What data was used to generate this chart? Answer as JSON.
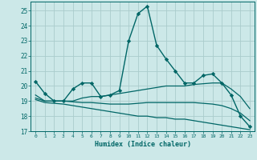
{
  "title": "",
  "xlabel": "Humidex (Indice chaleur)",
  "ylabel": "",
  "bg_color": "#cce8e8",
  "grid_color": "#aacccc",
  "line_color": "#006666",
  "xlim": [
    -0.5,
    23.5
  ],
  "ylim": [
    17,
    25.6
  ],
  "yticks": [
    17,
    18,
    19,
    20,
    21,
    22,
    23,
    24,
    25
  ],
  "xticks": [
    0,
    1,
    2,
    3,
    4,
    5,
    6,
    7,
    8,
    9,
    10,
    11,
    12,
    13,
    14,
    15,
    16,
    17,
    18,
    19,
    20,
    21,
    22,
    23
  ],
  "lines": [
    {
      "x": [
        0,
        1,
        2,
        3,
        4,
        5,
        6,
        7,
        8,
        9,
        10,
        11,
        12,
        13,
        14,
        15,
        16,
        17,
        18,
        19,
        20,
        21,
        22,
        23
      ],
      "y": [
        20.3,
        19.5,
        19.0,
        19.0,
        19.8,
        20.2,
        20.2,
        19.3,
        19.4,
        19.7,
        23.0,
        24.8,
        25.3,
        22.7,
        21.8,
        21.0,
        20.2,
        20.2,
        20.7,
        20.8,
        20.2,
        19.4,
        18.0,
        17.3
      ],
      "marker": "D",
      "markersize": 2.2,
      "linewidth": 1.0
    },
    {
      "x": [
        0,
        1,
        2,
        3,
        4,
        5,
        6,
        7,
        8,
        9,
        10,
        11,
        12,
        13,
        14,
        15,
        16,
        17,
        18,
        19,
        20,
        21,
        22,
        23
      ],
      "y": [
        19.4,
        19.0,
        19.0,
        19.0,
        19.0,
        19.2,
        19.3,
        19.3,
        19.4,
        19.5,
        19.6,
        19.7,
        19.8,
        19.9,
        20.0,
        20.0,
        20.0,
        20.1,
        20.15,
        20.2,
        20.2,
        19.8,
        19.3,
        18.5
      ],
      "marker": null,
      "markersize": 0,
      "linewidth": 0.9
    },
    {
      "x": [
        0,
        1,
        2,
        3,
        4,
        5,
        6,
        7,
        8,
        9,
        10,
        11,
        12,
        13,
        14,
        15,
        16,
        17,
        18,
        19,
        20,
        21,
        22,
        23
      ],
      "y": [
        19.2,
        19.0,
        19.0,
        19.0,
        18.95,
        18.9,
        18.9,
        18.85,
        18.8,
        18.8,
        18.8,
        18.85,
        18.9,
        18.9,
        18.9,
        18.9,
        18.9,
        18.9,
        18.85,
        18.8,
        18.7,
        18.5,
        18.2,
        17.7
      ],
      "marker": null,
      "markersize": 0,
      "linewidth": 0.9
    },
    {
      "x": [
        0,
        1,
        2,
        3,
        4,
        5,
        6,
        7,
        8,
        9,
        10,
        11,
        12,
        13,
        14,
        15,
        16,
        17,
        18,
        19,
        20,
        21,
        22,
        23
      ],
      "y": [
        19.1,
        18.9,
        18.85,
        18.8,
        18.7,
        18.6,
        18.5,
        18.4,
        18.3,
        18.2,
        18.1,
        18.0,
        18.0,
        17.9,
        17.9,
        17.8,
        17.8,
        17.7,
        17.6,
        17.5,
        17.4,
        17.3,
        17.2,
        17.1
      ],
      "marker": null,
      "markersize": 0,
      "linewidth": 0.9
    }
  ]
}
